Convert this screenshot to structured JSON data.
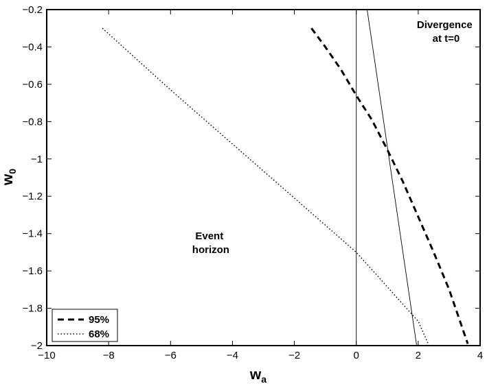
{
  "chart_data": {
    "type": "line",
    "title": "",
    "xlabel": {
      "main": "w",
      "sub": "a"
    },
    "ylabel": {
      "main": "w",
      "sub": "0"
    },
    "xlim": [
      -10,
      4
    ],
    "ylim": [
      -2,
      -0.2
    ],
    "grid": false,
    "xticks": [
      "−10",
      "−8",
      "−6",
      "−4",
      "−2",
      "0",
      "2",
      "4"
    ],
    "yticks": [
      "−2",
      "−1.8",
      "−1.6",
      "−1.4",
      "−1.2",
      "−1",
      "−0.8",
      "−0.6",
      "−0.4",
      "−0.2"
    ],
    "xtick_values": [
      -10,
      -8,
      -6,
      -4,
      -2,
      0,
      2,
      4
    ],
    "ytick_values": [
      -2,
      -1.8,
      -1.6,
      -1.4,
      -1.2,
      -1,
      -0.8,
      -0.6,
      -0.4,
      -0.2
    ],
    "series": [
      {
        "name": "95%",
        "style": "dashed",
        "x": [
          -1.45,
          -1.0,
          -0.5,
          0.0,
          0.5,
          1.0,
          1.5,
          2.0,
          2.5,
          3.0,
          3.6
        ],
        "y": [
          -0.3,
          -0.4,
          -0.52,
          -0.66,
          -0.79,
          -0.95,
          -1.12,
          -1.31,
          -1.5,
          -1.7,
          -1.99
        ]
      },
      {
        "name": "68%",
        "style": "dotted",
        "x": [
          -8.2,
          -6.0,
          -4.0,
          -2.0,
          0.0,
          2.0,
          2.35
        ],
        "y": [
          -0.3,
          -0.63,
          -0.92,
          -1.21,
          -1.5,
          -1.87,
          -2.0
        ]
      }
    ],
    "reference_lines": [
      {
        "x": [
          0,
          0
        ],
        "y": [
          -2,
          -0.2
        ]
      },
      {
        "x": [
          0.35,
          1.95
        ],
        "y": [
          -0.2,
          -2.0
        ]
      }
    ],
    "annotations": [
      {
        "lines": [
          "Divergence",
          "at t=0"
        ],
        "x": 2.9,
        "y": -0.3
      },
      {
        "lines": [
          "Event",
          "horizon"
        ],
        "x": -4.7,
        "y": -1.43
      }
    ],
    "legend": {
      "position": "bottom-left",
      "entries": [
        {
          "label": "95%",
          "style": "dashed"
        },
        {
          "label": "68%",
          "style": "dotted"
        }
      ]
    }
  }
}
